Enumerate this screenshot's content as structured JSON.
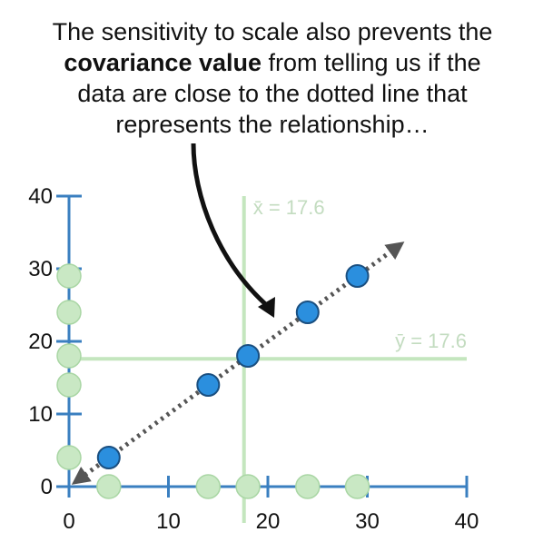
{
  "caption": {
    "line1": "The sensitivity to scale also prevents the",
    "bold": "covariance value",
    "line2_rest": " from telling us if the",
    "line3": "data are close to the dotted line that",
    "line4": "represents the relationship…"
  },
  "chart_data": {
    "type": "scatter",
    "title": "",
    "xlabel": "",
    "ylabel": "",
    "xlim": [
      0,
      40
    ],
    "ylim": [
      0,
      40
    ],
    "x_ticks": [
      0,
      10,
      20,
      30,
      40
    ],
    "y_ticks": [
      0,
      10,
      20,
      30,
      40
    ],
    "grid": false,
    "points": [
      {
        "x": 4,
        "y": 4
      },
      {
        "x": 14,
        "y": 14
      },
      {
        "x": 18,
        "y": 18
      },
      {
        "x": 24,
        "y": 24
      },
      {
        "x": 29,
        "y": 29
      }
    ],
    "x_projections": [
      4,
      14,
      18,
      24,
      29
    ],
    "y_projections": [
      4,
      14,
      18,
      24,
      29
    ],
    "mean_x": {
      "value": 17.6,
      "label": "x̄ = 17.6"
    },
    "mean_y": {
      "value": 17.6,
      "label": "ȳ = 17.6"
    },
    "trend_line": {
      "from": [
        1,
        1
      ],
      "to": [
        33,
        33
      ],
      "style": "dotted",
      "arrows": "both"
    },
    "colors": {
      "axis": "#3a7fc0",
      "point_fill": "#2b8fde",
      "point_stroke": "#1a4f80",
      "projection_fill": "#c9e8c4",
      "projection_stroke": "#a9d6a4",
      "mean_line": "#c4e6be",
      "mean_label": "#c3dcc0",
      "trend": "#555555"
    }
  }
}
